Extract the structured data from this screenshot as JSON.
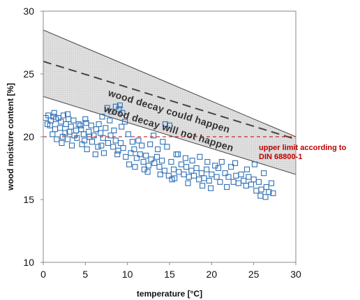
{
  "chart_data": {
    "type": "scatter",
    "xlabel": "temperature [°C]",
    "ylabel": "wood moisture content [%]",
    "xlim": [
      0,
      30
    ],
    "ylim": [
      10,
      30
    ],
    "xticks": [
      "0",
      "5",
      "10",
      "15",
      "20",
      "25",
      "30"
    ],
    "yticks": [
      "10",
      "15",
      "20",
      "25",
      "30"
    ],
    "grid": false,
    "marker": "open-square",
    "marker_color": "#2e6fb5",
    "band_color": "#d9d9d9",
    "upper_line": {
      "x": [
        0,
        30
      ],
      "y": [
        28.5,
        20.0
      ]
    },
    "lower_line": {
      "x": [
        0,
        30
      ],
      "y": [
        23.2,
        17.0
      ]
    },
    "dashed_line": {
      "x": [
        0,
        30
      ],
      "y": [
        26.0,
        19.8
      ]
    },
    "limit_line": {
      "y": 20,
      "color": "#c00000"
    },
    "annotations": {
      "upper_zone": "wood decay could happen",
      "lower_zone": "wood decay will not happen",
      "limit_line1": "upper limit according to",
      "limit_line2": "DIN 68800-1"
    },
    "points": [
      [
        0.3,
        21.5
      ],
      [
        0.6,
        21.7
      ],
      [
        0.9,
        21.3
      ],
      [
        1.2,
        21.6
      ],
      [
        1.5,
        21.4
      ],
      [
        0.8,
        20.9
      ],
      [
        1.4,
        20.6
      ],
      [
        1.1,
        20.2
      ],
      [
        1.8,
        21.5
      ],
      [
        2.1,
        21.2
      ],
      [
        2.4,
        21.7
      ],
      [
        2.7,
        21.0
      ],
      [
        3.0,
        21.4
      ],
      [
        1.6,
        19.8
      ],
      [
        2.2,
        19.5
      ],
      [
        2.6,
        20.3
      ],
      [
        3.3,
        20.8
      ],
      [
        3.6,
        21.3
      ],
      [
        3.9,
        20.5
      ],
      [
        4.2,
        21.0
      ],
      [
        4.5,
        20.6
      ],
      [
        2.9,
        19.8
      ],
      [
        3.4,
        19.3
      ],
      [
        4.0,
        19.9
      ],
      [
        4.8,
        20.2
      ],
      [
        5.1,
        21.1
      ],
      [
        5.4,
        20.4
      ],
      [
        5.7,
        20.9
      ],
      [
        6.0,
        20.1
      ],
      [
        6.3,
        20.6
      ],
      [
        4.6,
        19.4
      ],
      [
        5.2,
        19.0
      ],
      [
        5.8,
        19.6
      ],
      [
        6.5,
        19.2
      ],
      [
        6.8,
        20.3
      ],
      [
        7.1,
        19.9
      ],
      [
        7.4,
        20.7
      ],
      [
        7.7,
        19.5
      ],
      [
        8.0,
        20.1
      ],
      [
        6.2,
        18.6
      ],
      [
        7.2,
        18.7
      ],
      [
        8.3,
        19.2
      ],
      [
        8.6,
        19.7
      ],
      [
        8.9,
        18.9
      ],
      [
        9.2,
        19.5
      ],
      [
        7.6,
        22.3
      ],
      [
        8.1,
        22.0
      ],
      [
        8.6,
        22.4
      ],
      [
        9.0,
        22.2
      ],
      [
        9.4,
        21.9
      ],
      [
        9.1,
        22.5
      ],
      [
        9.7,
        21.2
      ],
      [
        10.1,
        20.2
      ],
      [
        9.5,
        19.1
      ],
      [
        9.8,
        18.4
      ],
      [
        10.4,
        18.7
      ],
      [
        10.8,
        19.0
      ],
      [
        11.1,
        18.3
      ],
      [
        11.5,
        18.6
      ],
      [
        10.2,
        17.8
      ],
      [
        11.9,
        18.0
      ],
      [
        12.2,
        18.5
      ],
      [
        12.5,
        17.7
      ],
      [
        12.8,
        18.2
      ],
      [
        11.7,
        19.3
      ],
      [
        12.0,
        17.4
      ],
      [
        13.2,
        17.9
      ],
      [
        13.5,
        18.4
      ],
      [
        13.8,
        17.6
      ],
      [
        14.1,
        18.1
      ],
      [
        14.4,
        17.3
      ],
      [
        14.7,
        19.2
      ],
      [
        14.5,
        21.0
      ],
      [
        15.0,
        20.9
      ],
      [
        13.1,
        20.1
      ],
      [
        15.2,
        18.0
      ],
      [
        15.5,
        17.4
      ],
      [
        15.8,
        18.6
      ],
      [
        16.1,
        17.2
      ],
      [
        16.4,
        17.8
      ],
      [
        14.9,
        16.9
      ],
      [
        15.6,
        16.7
      ],
      [
        16.7,
        17.0
      ],
      [
        17.0,
        17.6
      ],
      [
        17.3,
        16.8
      ],
      [
        17.6,
        17.3
      ],
      [
        17.9,
        16.9
      ],
      [
        18.2,
        17.5
      ],
      [
        18.5,
        16.6
      ],
      [
        18.8,
        17.1
      ],
      [
        19.1,
        16.7
      ],
      [
        19.4,
        17.4
      ],
      [
        19.7,
        16.5
      ],
      [
        20.0,
        17.0
      ],
      [
        19.9,
        15.9
      ],
      [
        20.4,
        17.7
      ],
      [
        20.8,
        17.5
      ],
      [
        21.2,
        18.0
      ],
      [
        21.6,
        17.1
      ],
      [
        22.0,
        16.8
      ],
      [
        22.3,
        17.6
      ],
      [
        22.6,
        16.4
      ],
      [
        22.9,
        16.9
      ],
      [
        23.2,
        16.3
      ],
      [
        23.5,
        17.0
      ],
      [
        23.8,
        16.5
      ],
      [
        24.1,
        16.1
      ],
      [
        24.4,
        16.8
      ],
      [
        24.7,
        16.2
      ],
      [
        25.0,
        16.6
      ],
      [
        25.3,
        15.7
      ],
      [
        25.6,
        16.4
      ],
      [
        25.9,
        15.8
      ],
      [
        26.2,
        17.1
      ],
      [
        26.5,
        16.0
      ],
      [
        26.8,
        15.6
      ],
      [
        27.1,
        16.3
      ],
      [
        27.3,
        15.5
      ],
      [
        25.8,
        15.3
      ],
      [
        26.4,
        15.2
      ],
      [
        0.5,
        21.0
      ],
      [
        1.3,
        21.9
      ],
      [
        2.0,
        20.7
      ],
      [
        2.9,
        21.8
      ],
      [
        3.7,
        20.1
      ],
      [
        4.4,
        20.9
      ],
      [
        5.0,
        21.4
      ],
      [
        5.5,
        20.0
      ],
      [
        6.6,
        21.0
      ],
      [
        7.0,
        21.6
      ],
      [
        7.9,
        21.3
      ],
      [
        8.4,
        20.5
      ],
      [
        9.3,
        20.8
      ],
      [
        10.6,
        19.6
      ],
      [
        11.3,
        19.7
      ],
      [
        12.7,
        19.4
      ],
      [
        13.6,
        19.0
      ],
      [
        14.2,
        19.6
      ],
      [
        16.0,
        18.6
      ],
      [
        16.9,
        18.3
      ],
      [
        17.7,
        18.1
      ],
      [
        18.6,
        18.4
      ],
      [
        19.5,
        18.0
      ],
      [
        21.0,
        16.4
      ],
      [
        22.8,
        17.9
      ],
      [
        24.2,
        17.4
      ],
      [
        25.1,
        17.8
      ],
      [
        2.3,
        20.0
      ],
      [
        3.1,
        20.4
      ],
      [
        4.9,
        19.7
      ],
      [
        6.9,
        19.3
      ],
      [
        8.8,
        18.6
      ],
      [
        10.9,
        17.6
      ],
      [
        12.4,
        17.2
      ],
      [
        13.9,
        17.0
      ],
      [
        15.3,
        16.6
      ],
      [
        17.2,
        16.3
      ],
      [
        18.9,
        16.1
      ],
      [
        20.6,
        16.8
      ],
      [
        21.8,
        16.0
      ]
    ]
  }
}
